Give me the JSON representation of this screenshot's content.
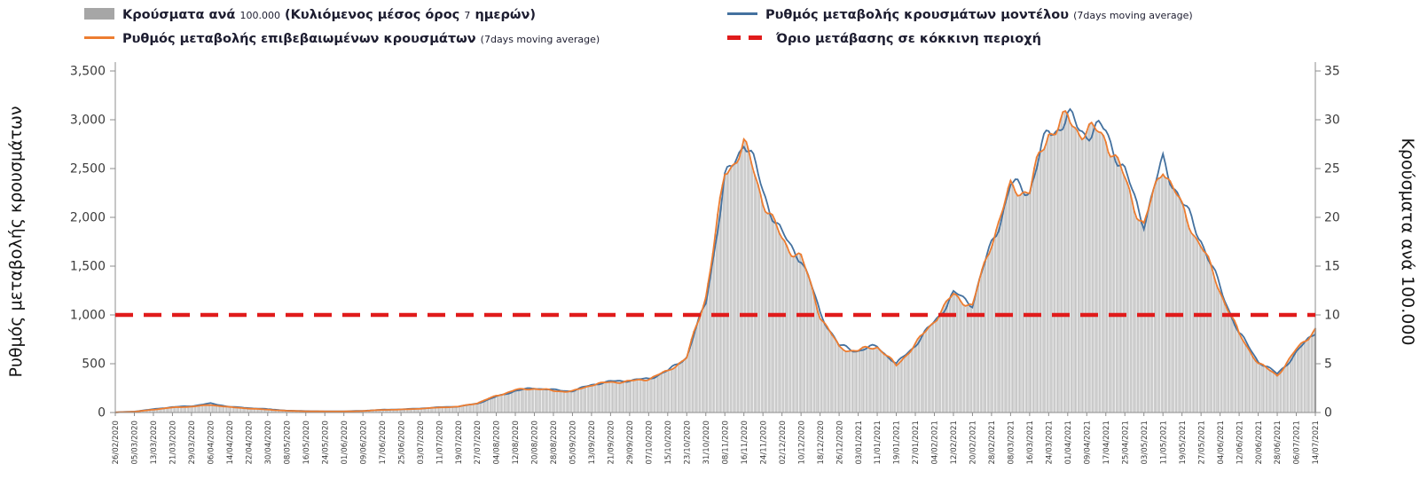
{
  "page": {
    "background": "#ffffff"
  },
  "legend": {
    "items": [
      {
        "swatch": "bar",
        "swatch_color": "#a6a6a6",
        "parts": {
          "a": "Κρούσματα ανά",
          "b": "100.000",
          "c": "(Κυλιόμενος μέσος όρος",
          "d": "7",
          "e": "ημερών)"
        }
      },
      {
        "swatch": "line",
        "swatch_color": "#44719f",
        "parts": {
          "a": "Ρυθμός μεταβολής κρουσμάτων μοντέλου",
          "b": "(7days moving average)"
        }
      },
      {
        "swatch": "line",
        "swatch_color": "#ed7d31",
        "parts": {
          "a": "Ρυθμός μεταβολής επιβεβαιωμένων κρουσμάτων",
          "b": "(7days moving average)"
        }
      },
      {
        "swatch": "dash",
        "swatch_color": "#e01b1b",
        "parts": {
          "a": "Όριο μετάβασης σε κόκκινη περιοχή"
        }
      }
    ]
  },
  "chart_data": {
    "type": "combo-bar-line",
    "title": "",
    "grid": false,
    "legend_position": "top",
    "x_labels": [
      "26/02/2020",
      "05/03/2020",
      "13/03/2020",
      "21/03/2020",
      "29/03/2020",
      "06/04/2020",
      "14/04/2020",
      "22/04/2020",
      "30/04/2020",
      "08/05/2020",
      "16/05/2020",
      "24/05/2020",
      "01/06/2020",
      "09/06/2020",
      "17/06/2020",
      "25/06/2020",
      "03/07/2020",
      "11/07/2020",
      "19/07/2020",
      "27/07/2020",
      "04/08/2020",
      "12/08/2020",
      "20/08/2020",
      "28/08/2020",
      "05/09/2020",
      "13/09/2020",
      "21/09/2020",
      "29/09/2020",
      "07/10/2020",
      "15/10/2020",
      "23/10/2020",
      "31/10/2020",
      "08/11/2020",
      "16/11/2020",
      "24/11/2020",
      "02/12/2020",
      "10/12/2020",
      "18/12/2020",
      "26/12/2020",
      "03/01/2021",
      "11/01/2021",
      "19/01/2021",
      "27/01/2021",
      "04/02/2021",
      "12/02/2021",
      "20/02/2021",
      "28/02/2021",
      "08/03/2021",
      "16/03/2021",
      "24/03/2021",
      "01/04/2021",
      "09/04/2021",
      "17/04/2021",
      "25/04/2021",
      "03/05/2021",
      "11/05/2021",
      "19/05/2021",
      "27/05/2021",
      "04/06/2021",
      "12/06/2021",
      "20/06/2021",
      "28/06/2021",
      "06/07/2021",
      "14/07/2021"
    ],
    "left_axis": {
      "label": "Ρυθμός μεταβολής κρουσμάτων",
      "min": 0,
      "max": 3500,
      "step": 500,
      "tick_labels": [
        "0",
        "500",
        "1,000",
        "1,500",
        "2,000",
        "2,500",
        "3,000",
        "3,500"
      ]
    },
    "right_axis": {
      "label": "Κρούσματα ανά 100.000",
      "min": 0,
      "max": 35,
      "step": 5,
      "tick_labels": [
        "0",
        "5",
        "10",
        "15",
        "20",
        "25",
        "30",
        "35"
      ]
    },
    "series": [
      {
        "name": "Κρούσματα ανά 100.000 (Κυλιόμενος μέσος όρος 7 ημερών)",
        "type": "bar",
        "axis": "right",
        "fill": "#ededed",
        "stroke": "#adadad",
        "values": [
          0.0,
          0.1,
          0.3,
          0.5,
          0.6,
          0.8,
          0.6,
          0.4,
          0.3,
          0.2,
          0.1,
          0.1,
          0.1,
          0.2,
          0.3,
          0.3,
          0.4,
          0.5,
          0.6,
          1.0,
          1.8,
          2.3,
          2.4,
          2.3,
          2.2,
          2.8,
          3.1,
          3.3,
          3.5,
          4.2,
          5.6,
          12.2,
          24.5,
          26.8,
          22.0,
          18.0,
          15.8,
          9.8,
          6.7,
          6.5,
          6.7,
          4.7,
          7.1,
          9.6,
          11.8,
          10.8,
          18.0,
          23.0,
          22.2,
          29.0,
          30.6,
          28.5,
          27.8,
          24.0,
          19.5,
          25.0,
          20.5,
          17.5,
          12.6,
          7.8,
          5.1,
          3.9,
          6.4,
          8.4
        ]
      },
      {
        "name": "Ρυθμός μεταβολής κρουσμάτων μοντέλου (7days moving average)",
        "type": "line",
        "axis": "left",
        "color": "#44719f",
        "values": [
          2,
          10,
          35,
          55,
          65,
          95,
          60,
          45,
          35,
          20,
          15,
          12,
          12,
          18,
          28,
          32,
          42,
          55,
          60,
          90,
          165,
          225,
          245,
          230,
          225,
          285,
          310,
          330,
          355,
          420,
          560,
          1150,
          2400,
          2760,
          2250,
          1850,
          1600,
          1000,
          680,
          650,
          680,
          480,
          700,
          950,
          1200,
          1100,
          1750,
          2350,
          2250,
          2850,
          3070,
          2900,
          2820,
          2450,
          2000,
          2570,
          2100,
          1800,
          1300,
          800,
          520,
          400,
          620,
          820
        ]
      },
      {
        "name": "Ρυθμός μεταβολής επιβεβαιωμένων κρουσμάτων (7days moving average)",
        "type": "line",
        "axis": "left",
        "color": "#ed7d31",
        "values": [
          2,
          8,
          30,
          50,
          60,
          80,
          55,
          40,
          30,
          18,
          13,
          11,
          11,
          16,
          26,
          30,
          40,
          52,
          58,
          95,
          175,
          230,
          240,
          225,
          220,
          280,
          305,
          325,
          350,
          415,
          555,
          1220,
          2450,
          2680,
          2200,
          1800,
          1580,
          980,
          670,
          645,
          670,
          470,
          710,
          960,
          1180,
          1080,
          1800,
          2300,
          2220,
          2900,
          3060,
          2850,
          2780,
          2400,
          1950,
          2500,
          2050,
          1750,
          1260,
          780,
          505,
          390,
          640,
          840
        ]
      },
      {
        "name": "Όριο μετάβασης σε κόκκινη περιοχή",
        "type": "threshold",
        "axis": "left",
        "color": "#e01b1b",
        "value": 1000
      }
    ]
  }
}
